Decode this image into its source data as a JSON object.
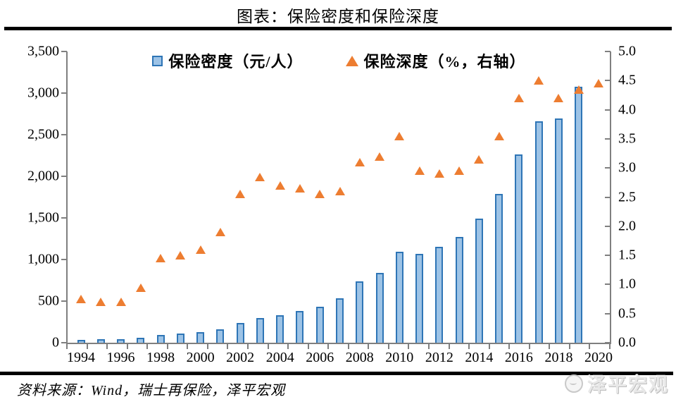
{
  "title": "图表：保险密度和保险深度",
  "legend": {
    "density_label": "保险密度（元/人）",
    "depth_label": "保险深度（%，右轴）"
  },
  "source_note": "资料来源：Wind，瑞士再保险，泽平宏观",
  "watermark": "泽平宏观",
  "colors": {
    "bar_fill": "#9DC3E6",
    "bar_border": "#2E75B6",
    "triangle": "#ED7D31",
    "axis": "#7f7f7f",
    "rule": "#000000"
  },
  "chart_data": {
    "type": "bar",
    "title": "图表：保险密度和保险深度",
    "categories": [
      1994,
      1995,
      1996,
      1997,
      1998,
      1999,
      2000,
      2001,
      2002,
      2003,
      2004,
      2005,
      2006,
      2007,
      2008,
      2009,
      2010,
      2011,
      2012,
      2013,
      2014,
      2015,
      2016,
      2017,
      2018,
      2019,
      2020
    ],
    "series": [
      {
        "name": "保险密度（元/人）",
        "type": "bar",
        "axis": "left",
        "values": [
          30,
          45,
          45,
          62,
          96,
          110,
          130,
          165,
          240,
          295,
          330,
          380,
          430,
          535,
          735,
          840,
          1090,
          1065,
          1150,
          1275,
          1490,
          1790,
          2260,
          2660,
          2695,
          3080,
          null
        ]
      },
      {
        "name": "保险深度（%，右轴）",
        "type": "scatter",
        "marker": "triangle",
        "axis": "right",
        "values": [
          0.75,
          0.7,
          0.7,
          0.95,
          1.45,
          1.5,
          1.6,
          1.9,
          2.55,
          2.85,
          2.7,
          2.65,
          2.55,
          2.6,
          3.1,
          3.2,
          3.55,
          2.95,
          2.9,
          2.95,
          3.15,
          3.55,
          4.2,
          4.5,
          4.2,
          4.35,
          4.45
        ]
      }
    ],
    "left_axis": {
      "min": 0,
      "max": 3500,
      "step": 500,
      "tick_labels": [
        "0",
        "500",
        "1,000",
        "1,500",
        "2,000",
        "2,500",
        "3,000",
        "3,500"
      ]
    },
    "right_axis": {
      "min": 0,
      "max": 5,
      "step": 0.5,
      "tick_labels": [
        "0.0",
        "0.5",
        "1.0",
        "1.5",
        "2.0",
        "2.5",
        "3.0",
        "3.5",
        "4.0",
        "4.5",
        "5.0"
      ]
    },
    "x_tick_labels": [
      "1994",
      "1996",
      "1998",
      "2000",
      "2002",
      "2004",
      "2006",
      "2008",
      "2010",
      "2012",
      "2014",
      "2016",
      "2018",
      "2020"
    ],
    "x_label_every": 2,
    "grid": false,
    "legend_position": "top"
  }
}
